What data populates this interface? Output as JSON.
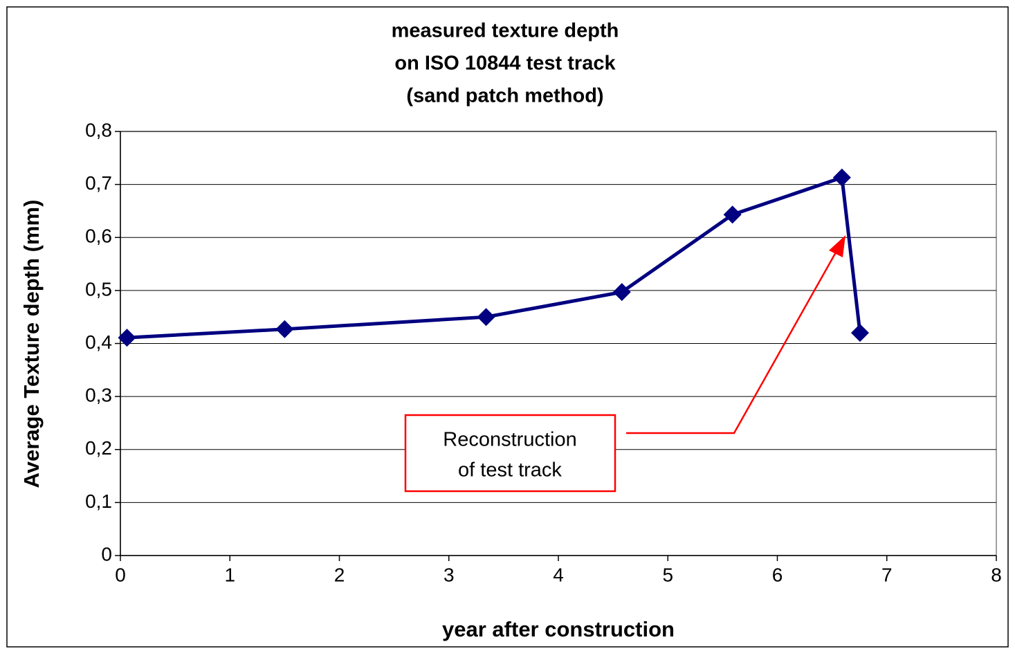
{
  "chart_data": {
    "type": "line",
    "title": [
      "measured texture depth",
      "on ISO 10844 test track",
      "(sand patch method)"
    ],
    "x_label": "year after construction",
    "y_label": "Average Texture depth (mm)",
    "x": [
      0.06,
      1.5,
      3.34,
      4.58,
      5.59,
      6.59,
      6.755
    ],
    "series": [
      {
        "name": "Average Texture depth",
        "color": "#000080",
        "values": [
          0.411,
          0.427,
          0.45,
          0.497,
          0.643,
          0.713,
          0.42
        ]
      }
    ],
    "xlim": [
      0,
      8
    ],
    "xticks": [
      0,
      1,
      2,
      3,
      4,
      5,
      6,
      7,
      8
    ],
    "ylim": [
      0,
      0.8
    ],
    "yticks": [
      0,
      {
        "value": 0.1,
        "label": "0,1"
      },
      {
        "value": 0.2,
        "label": "0,2"
      },
      {
        "value": 0.3,
        "label": "0,3"
      },
      {
        "value": 0.4,
        "label": "0,4"
      },
      {
        "value": 0.5,
        "label": "0,5"
      },
      {
        "value": 0.6,
        "label": "0,6"
      },
      {
        "value": 0.7,
        "label": "0,7"
      },
      {
        "value": 0.8,
        "label": "0,8"
      }
    ],
    "grid": true,
    "annotation": {
      "lines": [
        "Reconstruction",
        "of test track"
      ],
      "color": "#ff0000"
    }
  }
}
